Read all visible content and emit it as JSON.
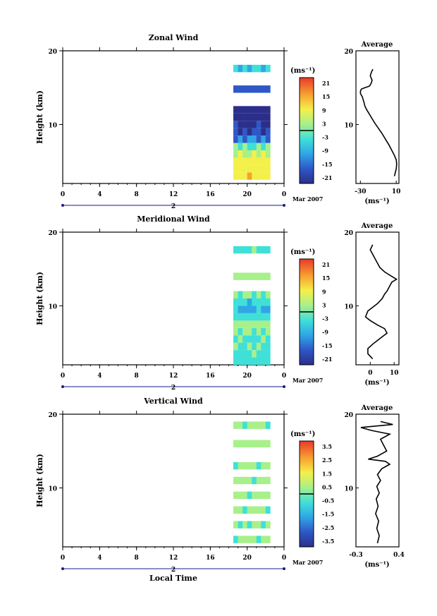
{
  "figure": {
    "date_label": "Mar 2007",
    "day_label": "2",
    "xlabel": "Local Time",
    "x_ticks": [
      "0",
      "4",
      "8",
      "12",
      "16",
      "20",
      "0"
    ],
    "unit_label": "(ms⁻¹)",
    "average_title": "Average"
  },
  "chart_data": [
    {
      "type": "heatmap",
      "title": "Zonal Wind",
      "xlabel": "",
      "ylabel": "Height (km)",
      "x_ticks": [
        "0",
        "4",
        "8",
        "12",
        "16",
        "20",
        "0"
      ],
      "ylim": [
        2,
        20
      ],
      "y_ticks": [
        "10",
        "20"
      ],
      "data_x_range": [
        "18.5",
        "22.5"
      ],
      "colorbar": {
        "unit": "(ms⁻¹)",
        "ticks": [
          "21",
          "15",
          "9",
          "3",
          "-3",
          "-9",
          "-15",
          "-21"
        ],
        "range": [
          -24,
          24
        ]
      },
      "profile_rows": [
        {
          "y": 3,
          "v": 10
        },
        {
          "y": 4,
          "v": 9
        },
        {
          "y": 5,
          "v": 8
        },
        {
          "y": 6,
          "v": 5
        },
        {
          "y": 7,
          "v": -1
        },
        {
          "y": 8,
          "v": -12
        },
        {
          "y": 9,
          "v": -18
        },
        {
          "y": 10,
          "v": -20
        },
        {
          "y": 11,
          "v": -22
        },
        {
          "y": 12,
          "v": -23
        },
        {
          "y": 14.8,
          "v": -16
        },
        {
          "y": 17.6,
          "v": -6
        }
      ],
      "average": {
        "title": "Average",
        "xlabel": "(ms⁻¹)",
        "x_ticks": [
          "-30",
          "10"
        ],
        "xlim": [
          -35,
          13
        ],
        "y_ticks": [
          "10",
          "20"
        ],
        "profile": [
          [
            8,
            3
          ],
          [
            9,
            3.5
          ],
          [
            10,
            4
          ],
          [
            10.5,
            4.6
          ],
          [
            10,
            5.2
          ],
          [
            8,
            5.8
          ],
          [
            5,
            6.5
          ],
          [
            2,
            7.2
          ],
          [
            -2,
            8
          ],
          [
            -6,
            8.8
          ],
          [
            -10,
            9.5
          ],
          [
            -14,
            10.2
          ],
          [
            -18,
            11
          ],
          [
            -21,
            11.6
          ],
          [
            -23,
            12
          ],
          [
            -25,
            12.5
          ],
          [
            -26,
            13
          ],
          [
            -28,
            13.8
          ],
          [
            -30,
            14.2
          ],
          [
            -30,
            14.5
          ],
          [
            -29,
            14.8
          ],
          [
            -25,
            15
          ],
          [
            -20,
            15.2
          ],
          [
            -18,
            15.6
          ],
          [
            -17,
            16
          ],
          [
            -18,
            16.3
          ],
          [
            -19,
            16.6
          ],
          [
            -18,
            17
          ],
          [
            -17,
            17.3
          ],
          [
            -16,
            17.5
          ]
        ]
      }
    },
    {
      "type": "heatmap",
      "title": "Meridional Wind",
      "xlabel": "",
      "ylabel": "Height (km)",
      "x_ticks": [
        "0",
        "4",
        "8",
        "12",
        "16",
        "20",
        "0"
      ],
      "ylim": [
        2,
        20
      ],
      "y_ticks": [
        "10",
        "20"
      ],
      "data_x_range": [
        "18.5",
        "22.5"
      ],
      "colorbar": {
        "unit": "(ms⁻¹)",
        "ticks": [
          "21",
          "15",
          "9",
          "3",
          "-3",
          "-9",
          "-15",
          "-21"
        ],
        "range": [
          -24,
          24
        ]
      },
      "profile_rows": [
        {
          "y": 2.5,
          "v": -3
        },
        {
          "y": 3.5,
          "v": -2
        },
        {
          "y": 4.5,
          "v": -1
        },
        {
          "y": 5.5,
          "v": -2
        },
        {
          "y": 6.5,
          "v": 0
        },
        {
          "y": 7.5,
          "v": 2
        },
        {
          "y": 8.5,
          "v": -4
        },
        {
          "y": 9.5,
          "v": -8
        },
        {
          "y": 10.5,
          "v": -5
        },
        {
          "y": 11.5,
          "v": 0
        },
        {
          "y": 14,
          "v": 3
        },
        {
          "y": 17.6,
          "v": -2
        }
      ],
      "average": {
        "title": "Average",
        "xlabel": "(ms⁻¹)",
        "x_ticks": [
          "0",
          "10"
        ],
        "xlim": [
          -6,
          12
        ],
        "y_ticks": [
          "10",
          "20"
        ],
        "profile": [
          [
            1,
            2.8
          ],
          [
            -1,
            3.5
          ],
          [
            -1,
            4.2
          ],
          [
            1,
            4.8
          ],
          [
            3,
            5.3
          ],
          [
            5,
            5.8
          ],
          [
            7,
            6.3
          ],
          [
            6,
            6.9
          ],
          [
            3,
            7.4
          ],
          [
            0,
            8
          ],
          [
            -2,
            8.5
          ],
          [
            -1,
            9.3
          ],
          [
            1,
            9.8
          ],
          [
            3,
            10.3
          ],
          [
            5,
            11
          ],
          [
            6,
            11.6
          ],
          [
            7,
            12
          ],
          [
            8,
            12.6
          ],
          [
            9,
            13.2
          ],
          [
            11,
            13.6
          ],
          [
            9,
            14
          ],
          [
            6,
            14.6
          ],
          [
            4,
            15.2
          ],
          [
            3,
            15.8
          ],
          [
            2,
            16.4
          ],
          [
            1,
            17
          ],
          [
            0,
            17.6
          ],
          [
            1,
            18.3
          ]
        ]
      }
    },
    {
      "type": "heatmap",
      "title": "Vertical Wind",
      "xlabel": "Local Time",
      "ylabel": "Height (km)",
      "x_ticks": [
        "0",
        "4",
        "8",
        "12",
        "16",
        "20",
        "0"
      ],
      "ylim": [
        2,
        20
      ],
      "y_ticks": [
        "10",
        "20"
      ],
      "data_x_range": [
        "18.5",
        "22.5"
      ],
      "colorbar": {
        "unit": "(ms⁻¹)",
        "ticks": [
          "3.5",
          "2.5",
          "1.5",
          "0.5",
          "-0.5",
          "-1.5",
          "-2.5",
          "-3.5"
        ],
        "range": [
          -4,
          4
        ]
      },
      "profile_rows": [
        {
          "y": 3,
          "v": 0.2
        },
        {
          "y": 5,
          "v": 0.1
        },
        {
          "y": 7,
          "v": 0.3
        },
        {
          "y": 9,
          "v": 0.2
        },
        {
          "y": 11,
          "v": 0.3
        },
        {
          "y": 13,
          "v": 0.2
        },
        {
          "y": 16,
          "v": 0.4
        },
        {
          "y": 18.5,
          "v": 0.2
        }
      ],
      "average": {
        "title": "Average",
        "xlabel": "(ms⁻¹)",
        "x_ticks": [
          "-0.3",
          "0.4"
        ],
        "xlim": [
          -0.3,
          0.4
        ],
        "y_ticks": [
          "10",
          "20"
        ],
        "profile": [
          [
            0.05,
            2.5
          ],
          [
            0.08,
            3.5
          ],
          [
            0.04,
            4.5
          ],
          [
            0.07,
            5.5
          ],
          [
            0.02,
            6.5
          ],
          [
            0.06,
            7.5
          ],
          [
            0.03,
            8.5
          ],
          [
            0.08,
            9.3
          ],
          [
            0.04,
            10.2
          ],
          [
            0.1,
            11
          ],
          [
            0.05,
            11.8
          ],
          [
            0.12,
            12.6
          ],
          [
            0.25,
            13.2
          ],
          [
            0.18,
            13.6
          ],
          [
            -0.1,
            13.9
          ],
          [
            0.05,
            14.3
          ],
          [
            0.2,
            15
          ],
          [
            0.15,
            15.8
          ],
          [
            0.1,
            16.6
          ],
          [
            0.25,
            17.3
          ],
          [
            -0.05,
            17.8
          ],
          [
            -0.22,
            18.2
          ],
          [
            0.3,
            18.6
          ],
          [
            0.1,
            19
          ]
        ]
      }
    }
  ]
}
